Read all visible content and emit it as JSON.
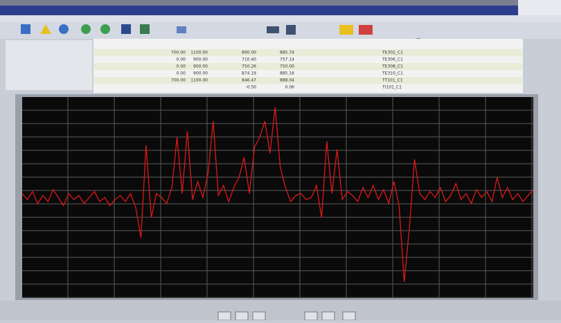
{
  "table": {
    "rows": [
      [
        "700.00",
        "1100.00",
        "890.00",
        "885.74",
        "TE302_C1"
      ],
      [
        "0.00",
        "900.00",
        "710.40",
        "757.14",
        "TE306_C1"
      ],
      [
        "0.00",
        "900.00",
        "750.26",
        "750.00",
        "TE308_C1"
      ],
      [
        "0.00",
        "900.00",
        "874.19",
        "885.16",
        "TE310_C1"
      ],
      [
        "700.00",
        "1100.00",
        "846.47",
        "888.04",
        "TT101_C1"
      ],
      [
        "",
        "",
        "-0.50",
        "0.06",
        "TI101_C1"
      ]
    ]
  },
  "chart_data": {
    "type": "line",
    "ylim": [
      0,
      100
    ],
    "series": [
      {
        "color": "#e01818",
        "values": [
          52,
          49,
          53,
          47,
          51,
          48,
          54,
          50,
          46,
          52,
          49,
          51,
          47,
          50,
          53,
          48,
          50,
          46,
          49,
          51,
          48,
          52,
          45,
          30,
          76,
          40,
          52,
          50,
          47,
          55,
          80,
          52,
          83,
          49,
          58,
          50,
          62,
          88,
          51,
          56,
          48,
          55,
          60,
          70,
          52,
          75,
          80,
          88,
          72,
          95,
          65,
          55,
          48,
          51,
          52,
          49,
          50,
          56,
          40,
          78,
          52,
          74,
          49,
          53,
          51,
          48,
          55,
          50,
          56,
          49,
          54,
          47,
          58,
          46,
          8,
          35,
          69,
          52,
          49,
          53,
          50,
          55,
          48,
          51,
          57,
          49,
          52,
          47,
          54,
          50,
          53,
          48,
          60,
          50,
          55,
          49,
          52,
          48,
          51,
          54
        ]
      }
    ]
  }
}
